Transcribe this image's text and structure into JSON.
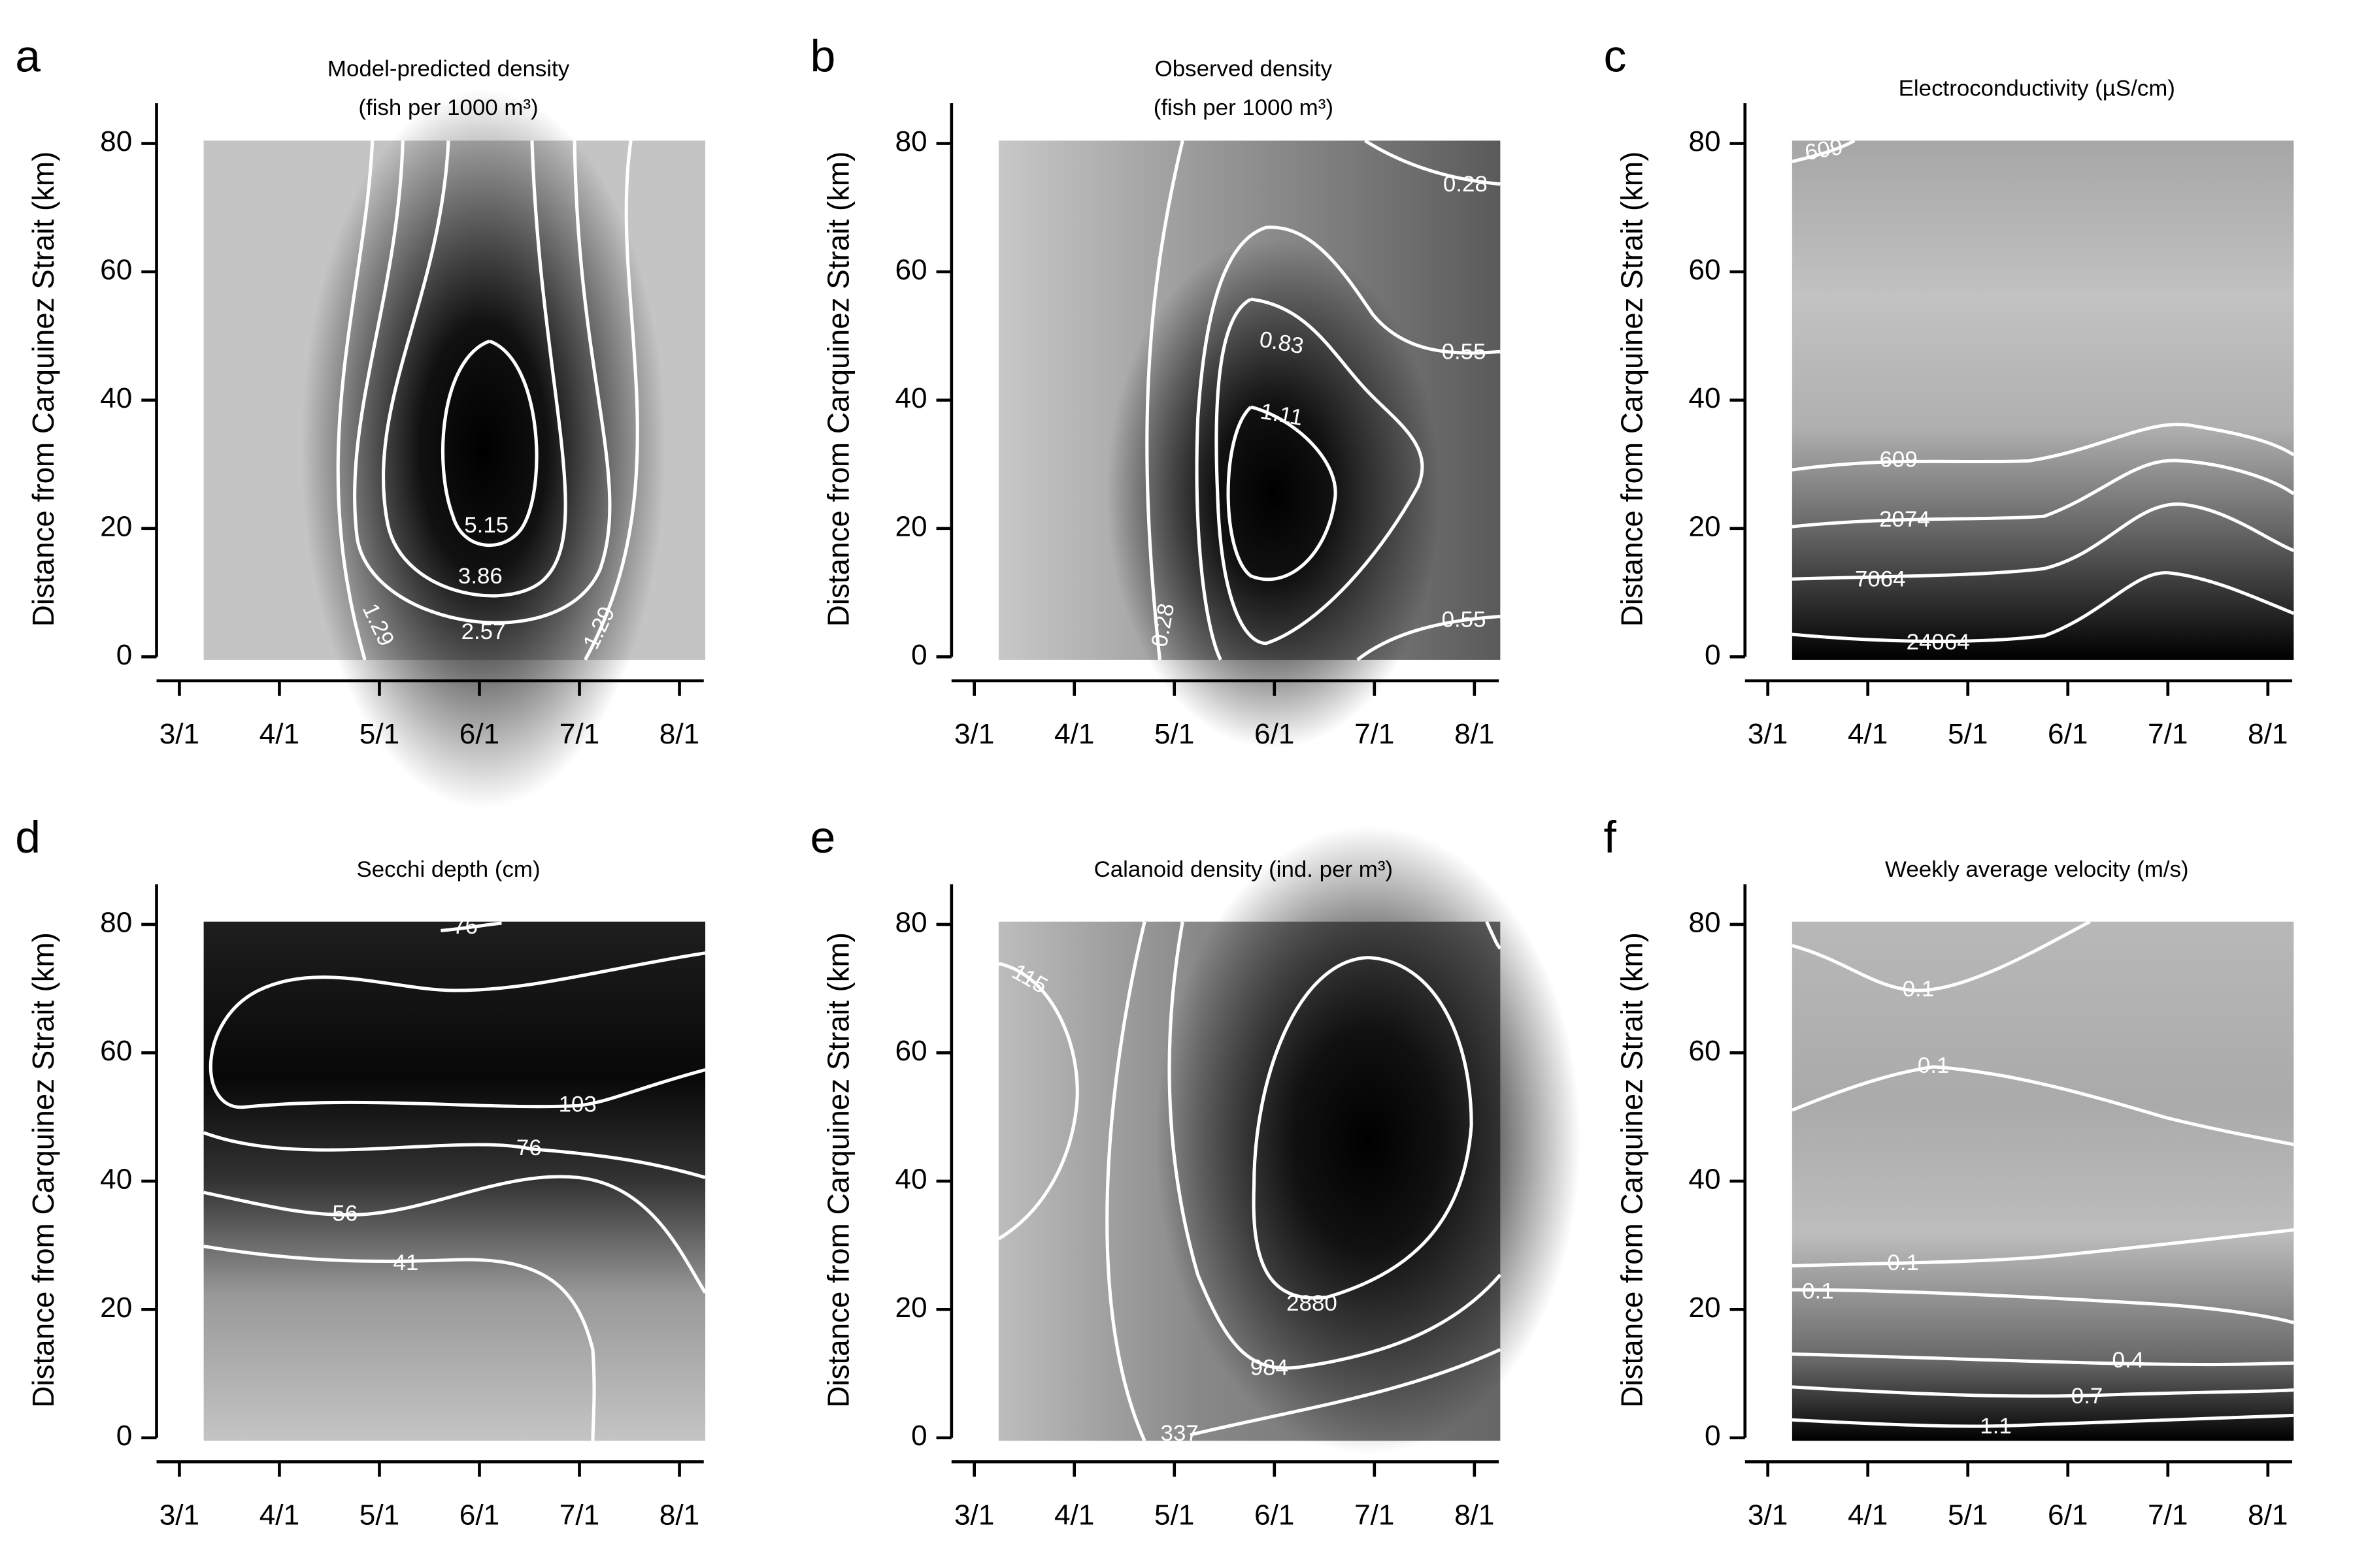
{
  "chart_data": [
    {
      "type": "contour",
      "panel_label": "a",
      "title": [
        "Model-predicted density",
        "(fish per 1000 m³)"
      ],
      "ylabel": "Distance from Carquinez Strait (km)",
      "categories": [
        "3/1",
        "4/1",
        "5/1",
        "6/1",
        "7/1",
        "8/1"
      ],
      "ylim": [
        0,
        83
      ],
      "yticks": [
        0,
        20,
        40,
        60,
        80
      ],
      "contour_labels": [
        5.15,
        3.86,
        2.57,
        1.29,
        1.29
      ]
    },
    {
      "type": "contour",
      "panel_label": "b",
      "title": [
        "Observed density",
        "(fish per 1000 m³)"
      ],
      "ylabel": "Distance from Carquinez Strait (km)",
      "categories": [
        "3/1",
        "4/1",
        "5/1",
        "6/1",
        "7/1",
        "8/1"
      ],
      "ylim": [
        0,
        83
      ],
      "yticks": [
        0,
        20,
        40,
        60,
        80
      ],
      "contour_labels": [
        0.28,
        0.55,
        0.83,
        1.11,
        0.28,
        0.55
      ]
    },
    {
      "type": "contour",
      "panel_label": "c",
      "title": [
        "Electroconductivity (µS/cm)"
      ],
      "ylabel": "Distance from Carquinez Strait (km)",
      "categories": [
        "3/1",
        "4/1",
        "5/1",
        "6/1",
        "7/1",
        "8/1"
      ],
      "ylim": [
        0,
        83
      ],
      "yticks": [
        0,
        20,
        40,
        60,
        80
      ],
      "contour_labels": [
        609,
        609,
        2074,
        7064,
        24064
      ]
    },
    {
      "type": "contour",
      "panel_label": "d",
      "title": [
        "Secchi depth (cm)"
      ],
      "ylabel": "Distance from Carquinez Strait (km)",
      "categories": [
        "3/1",
        "4/1",
        "5/1",
        "6/1",
        "7/1",
        "8/1"
      ],
      "ylim": [
        0,
        83
      ],
      "yticks": [
        0,
        20,
        40,
        60,
        80
      ],
      "contour_labels": [
        76,
        103,
        76,
        56,
        41
      ]
    },
    {
      "type": "contour",
      "panel_label": "e",
      "title": [
        "Calanoid density (ind. per m³)"
      ],
      "ylabel": "Distance from Carquinez Strait (km)",
      "categories": [
        "3/1",
        "4/1",
        "5/1",
        "6/1",
        "7/1",
        "8/1"
      ],
      "ylim": [
        0,
        83
      ],
      "yticks": [
        0,
        20,
        40,
        60,
        80
      ],
      "contour_labels": [
        115,
        2880,
        984,
        337
      ]
    },
    {
      "type": "contour",
      "panel_label": "f",
      "title": [
        "Weekly average velocity (m/s)"
      ],
      "ylabel": "Distance from Carquinez Strait (km)",
      "categories": [
        "3/1",
        "4/1",
        "5/1",
        "6/1",
        "7/1",
        "8/1"
      ],
      "ylim": [
        0,
        83
      ],
      "yticks": [
        0,
        20,
        40,
        60,
        80
      ],
      "contour_labels": [
        0.1,
        0.1,
        0.1,
        0.1,
        0.4,
        0.7,
        1.1
      ]
    }
  ]
}
